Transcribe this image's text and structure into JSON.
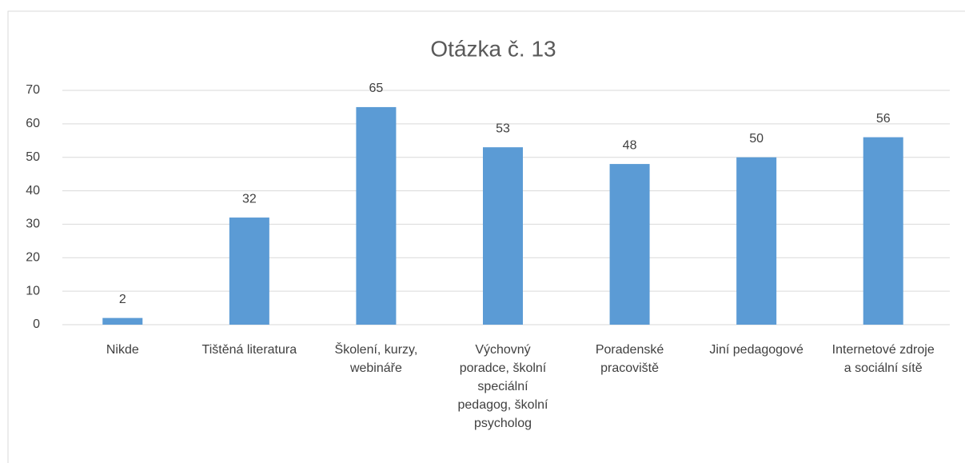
{
  "chart_data": {
    "type": "bar",
    "title": "Otázka č. 13",
    "categories": [
      "Nikde",
      "Tištěná literatura",
      "Školení, kurzy, webináře",
      "Výchovný poradce, školní speciální pedagog, školní psycholog",
      "Poradenské pracoviště",
      "Jiní pedagogové",
      "Internetové zdroje a sociální sítě"
    ],
    "values": [
      2,
      32,
      65,
      53,
      48,
      50,
      56
    ],
    "color": "#5b9bd5",
    "ylim": [
      0,
      70
    ],
    "yticks": [
      0,
      10,
      20,
      30,
      40,
      50,
      60,
      70
    ],
    "grid": true,
    "data_labels": true
  }
}
